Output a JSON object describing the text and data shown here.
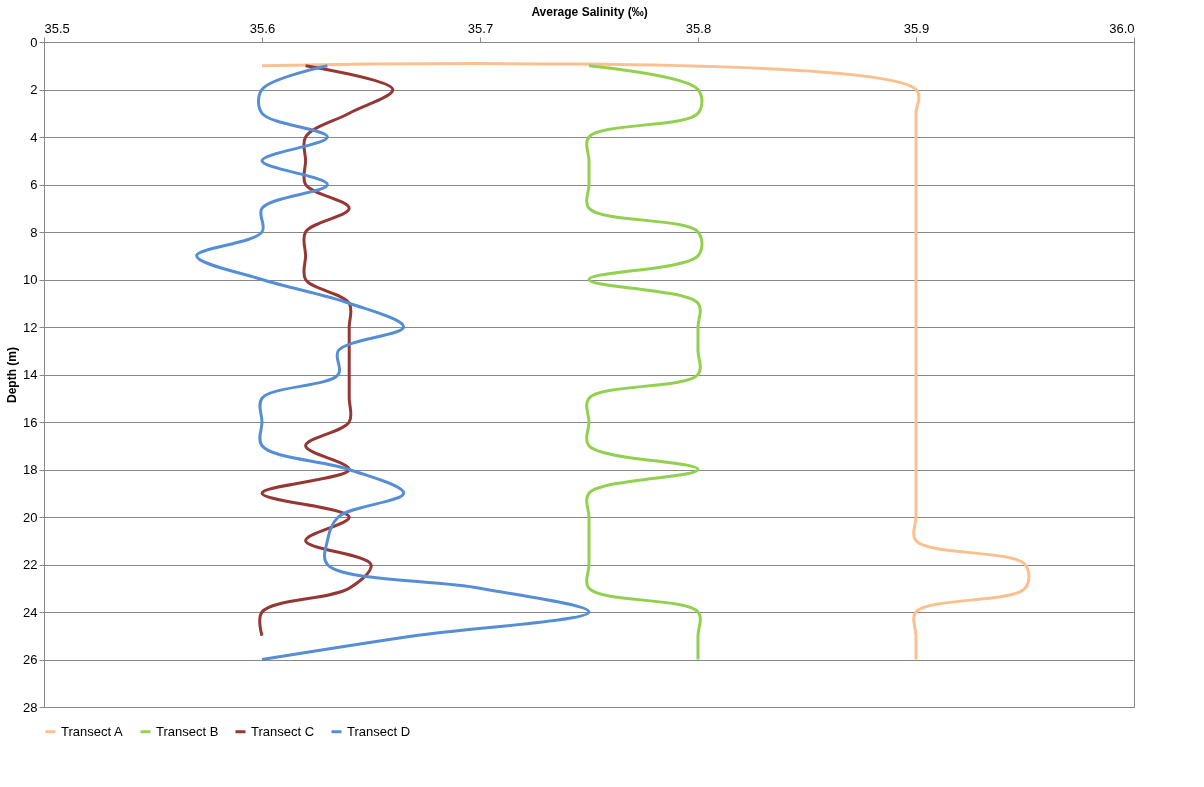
{
  "chart_data": {
    "type": "line",
    "orientation": "horizontal",
    "xlabel": "Average Salinity (‰)",
    "ylabel": "Depth (m)",
    "x": [
      1,
      2,
      3,
      4,
      5,
      6,
      7,
      8,
      9,
      10,
      11,
      12,
      13,
      14,
      15,
      16,
      17,
      18,
      19,
      20,
      21,
      22,
      23,
      24,
      25,
      26
    ],
    "series": [
      {
        "name": "Transect A",
        "color": "#fac090",
        "values": [
          35.6,
          35.9,
          35.9,
          35.9,
          35.9,
          35.9,
          35.9,
          35.9,
          35.9,
          35.9,
          35.9,
          35.9,
          35.9,
          35.9,
          35.9,
          35.9,
          35.9,
          35.9,
          35.9,
          35.9,
          35.9,
          35.95,
          35.95,
          35.9,
          35.9,
          35.9
        ]
      },
      {
        "name": "Transect B",
        "color": "#92d050",
        "values": [
          35.75,
          35.8,
          35.8,
          35.75,
          35.75,
          35.75,
          35.75,
          35.8,
          35.8,
          35.75,
          35.8,
          35.8,
          35.8,
          35.8,
          35.75,
          35.75,
          35.75,
          35.8,
          35.75,
          35.75,
          35.75,
          35.75,
          35.75,
          35.8,
          35.8,
          35.8
        ]
      },
      {
        "name": "Transect C",
        "color": "#953735",
        "values": [
          35.62,
          35.66,
          35.64,
          35.62,
          35.62,
          35.62,
          35.64,
          35.62,
          35.62,
          35.62,
          35.64,
          35.64,
          35.64,
          35.64,
          35.64,
          35.64,
          35.62,
          35.64,
          35.6,
          35.64,
          35.62,
          35.65,
          35.64,
          35.6,
          35.6,
          null
        ]
      },
      {
        "name": "Transect D",
        "color": "#558ed5",
        "values": [
          35.63,
          35.6,
          35.6,
          35.63,
          35.6,
          35.63,
          35.6,
          35.6,
          35.57,
          35.6,
          35.64,
          35.665,
          35.635,
          35.635,
          35.6,
          35.6,
          35.6,
          35.64,
          35.665,
          35.635,
          35.63,
          35.63,
          35.7,
          35.75,
          35.67,
          35.6
        ]
      }
    ],
    "xlim": [
      35.5,
      36.0
    ],
    "xticks": [
      35.5,
      35.6,
      35.7,
      35.8,
      35.9,
      {
        "value": 36.0,
        "label": "36.0"
      }
    ],
    "ylim": [
      28,
      0
    ],
    "yticks": [
      0,
      2,
      4,
      6,
      8,
      10,
      12,
      14,
      16,
      18,
      20,
      22,
      24,
      26,
      28
    ],
    "grid": "y",
    "legend": "bottom",
    "marker": "none",
    "line_style": "solid"
  }
}
